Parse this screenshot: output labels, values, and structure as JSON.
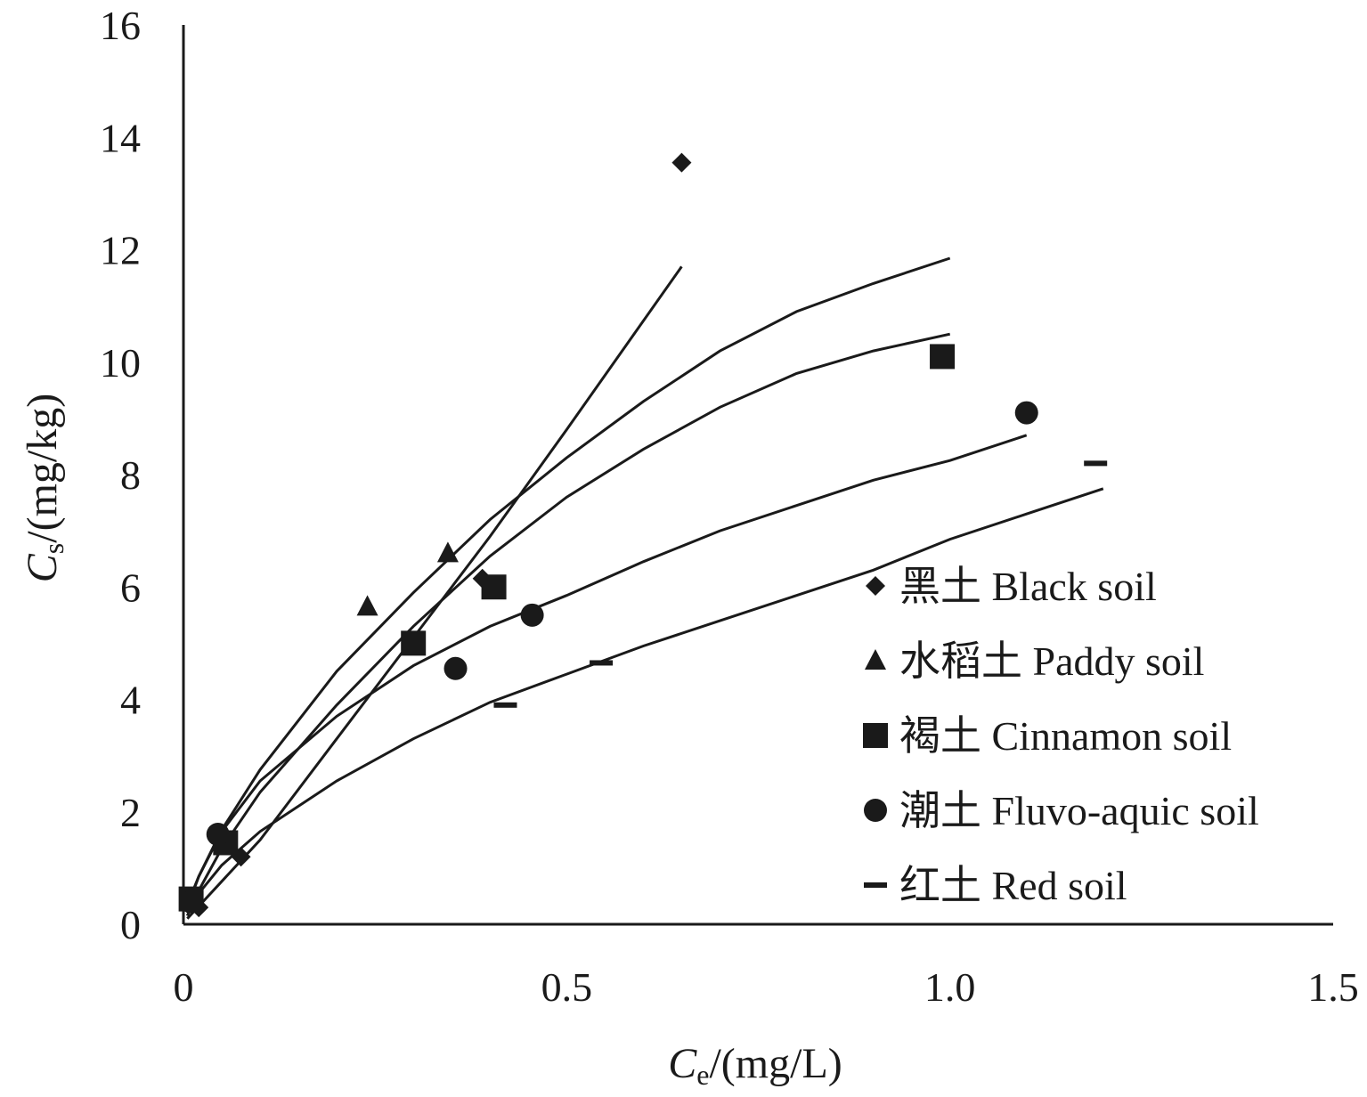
{
  "chart_data": {
    "type": "scatter",
    "title": "",
    "xlabel": {
      "italic": "C",
      "sub": "e",
      "rest": "/(mg/L)"
    },
    "ylabel": {
      "italic": "C",
      "sub": "s",
      "rest": "/(mg/kg)"
    },
    "xlim": [
      0,
      1.5
    ],
    "ylim": [
      0,
      16
    ],
    "xticks": [
      {
        "value": 0,
        "label": "0"
      },
      {
        "value": 0.5,
        "label": "0.5"
      },
      {
        "value": 1.0,
        "label": "1.0"
      },
      {
        "value": 1.5,
        "label": "1.5"
      }
    ],
    "yticks": [
      {
        "value": 0,
        "label": "0"
      },
      {
        "value": 2,
        "label": "2"
      },
      {
        "value": 4,
        "label": "4"
      },
      {
        "value": 6,
        "label": "6"
      },
      {
        "value": 8,
        "label": "8"
      },
      {
        "value": 10,
        "label": "10"
      },
      {
        "value": 12,
        "label": "12"
      },
      {
        "value": 14,
        "label": "14"
      },
      {
        "value": 16,
        "label": "16"
      }
    ],
    "grid": false,
    "legend_position": "bottom-right",
    "series": [
      {
        "name": "黑土 Black soil",
        "marker": "diamond",
        "points": [
          [
            0.02,
            0.3
          ],
          [
            0.075,
            1.2
          ],
          [
            0.39,
            6.15
          ],
          [
            0.65,
            13.55
          ]
        ],
        "fit": [
          [
            0.005,
            0.1
          ],
          [
            0.1,
            1.5
          ],
          [
            0.2,
            3.3
          ],
          [
            0.3,
            5.1
          ],
          [
            0.4,
            6.9
          ],
          [
            0.5,
            8.8
          ],
          [
            0.65,
            11.7
          ]
        ]
      },
      {
        "name": "水稻土 Paddy soil",
        "marker": "triangle",
        "points": [
          [
            0.24,
            5.65
          ],
          [
            0.345,
            6.6
          ]
        ],
        "fit": [
          [
            0.005,
            0.35
          ],
          [
            0.02,
            0.85
          ],
          [
            0.05,
            1.68
          ],
          [
            0.1,
            2.75
          ],
          [
            0.2,
            4.5
          ],
          [
            0.3,
            5.9
          ],
          [
            0.4,
            7.2
          ],
          [
            0.5,
            8.3
          ],
          [
            0.6,
            9.3
          ],
          [
            0.7,
            10.2
          ],
          [
            0.8,
            10.9
          ],
          [
            0.9,
            11.4
          ],
          [
            1.0,
            11.85
          ]
        ]
      },
      {
        "name": "褐土 Cinnamon soil",
        "marker": "square",
        "points": [
          [
            0.01,
            0.45
          ],
          [
            0.055,
            1.45
          ],
          [
            0.3,
            5.0
          ],
          [
            0.405,
            6.0
          ],
          [
            0.99,
            10.1
          ]
        ],
        "fit": [
          [
            0.005,
            0.15
          ],
          [
            0.02,
            0.6
          ],
          [
            0.05,
            1.35
          ],
          [
            0.1,
            2.35
          ],
          [
            0.2,
            3.9
          ],
          [
            0.3,
            5.3
          ],
          [
            0.4,
            6.55
          ],
          [
            0.5,
            7.6
          ],
          [
            0.6,
            8.45
          ],
          [
            0.7,
            9.2
          ],
          [
            0.8,
            9.8
          ],
          [
            0.9,
            10.2
          ],
          [
            1.0,
            10.5
          ]
        ]
      },
      {
        "name": "潮土 Fluvo-aquic soil",
        "marker": "circle",
        "points": [
          [
            0.01,
            0.4
          ],
          [
            0.045,
            1.6
          ],
          [
            0.355,
            4.55
          ],
          [
            0.455,
            5.5
          ],
          [
            1.1,
            9.1
          ]
        ],
        "fit": [
          [
            0.005,
            0.3
          ],
          [
            0.02,
            0.85
          ],
          [
            0.05,
            1.65
          ],
          [
            0.1,
            2.55
          ],
          [
            0.2,
            3.7
          ],
          [
            0.3,
            4.6
          ],
          [
            0.4,
            5.3
          ],
          [
            0.5,
            5.85
          ],
          [
            0.6,
            6.45
          ],
          [
            0.7,
            7.0
          ],
          [
            0.8,
            7.45
          ],
          [
            0.9,
            7.9
          ],
          [
            1.0,
            8.25
          ],
          [
            1.1,
            8.7
          ]
        ]
      },
      {
        "name": "红土 Red soil",
        "marker": "dash",
        "points": [
          [
            0.42,
            3.9
          ],
          [
            0.545,
            4.65
          ],
          [
            1.19,
            8.2
          ]
        ],
        "fit": [
          [
            0.005,
            0.2
          ],
          [
            0.02,
            0.55
          ],
          [
            0.05,
            1.05
          ],
          [
            0.1,
            1.65
          ],
          [
            0.2,
            2.55
          ],
          [
            0.3,
            3.3
          ],
          [
            0.4,
            3.95
          ],
          [
            0.5,
            4.45
          ],
          [
            0.6,
            4.95
          ],
          [
            0.7,
            5.4
          ],
          [
            0.8,
            5.85
          ],
          [
            0.9,
            6.3
          ],
          [
            1.0,
            6.85
          ],
          [
            1.1,
            7.3
          ],
          [
            1.2,
            7.75
          ]
        ]
      }
    ]
  }
}
